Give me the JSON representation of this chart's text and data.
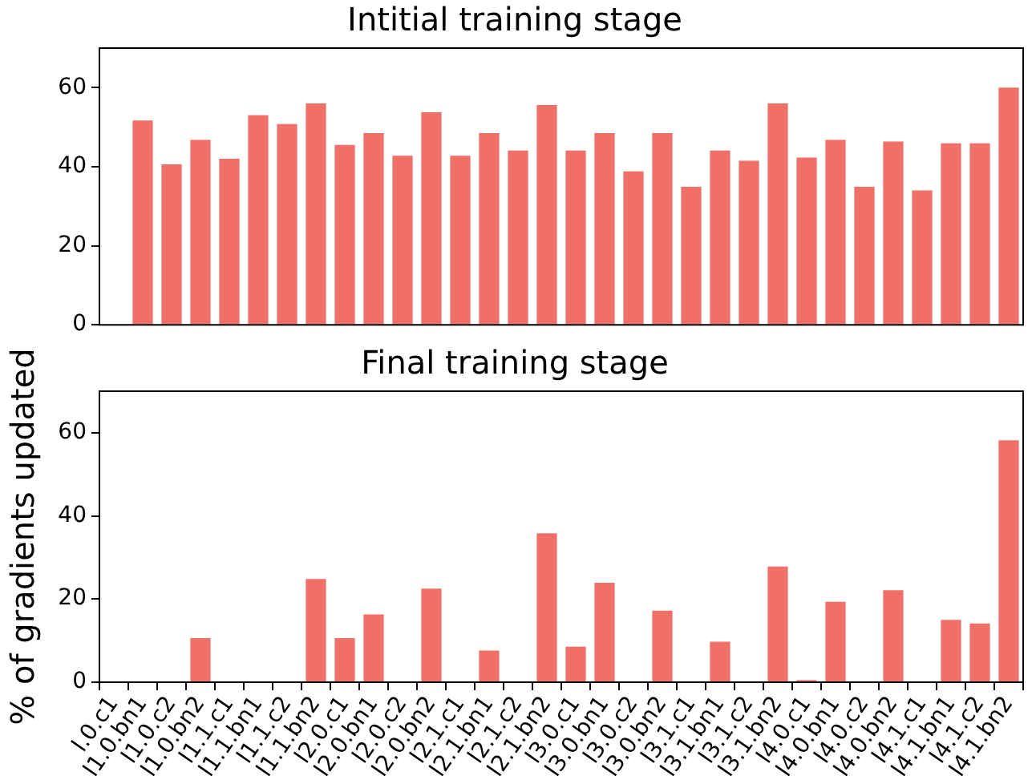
{
  "chart_data": [
    {
      "type": "bar",
      "title": "Intitial training stage",
      "categories": [
        null,
        null,
        null,
        null,
        null,
        null,
        null,
        null,
        null,
        null,
        null,
        null,
        null,
        null,
        null,
        null,
        null,
        null,
        null,
        null,
        null,
        null,
        null,
        null,
        null,
        null,
        null,
        null,
        null,
        null,
        null
      ],
      "values": [
        51.7,
        40.6,
        46.8,
        42,
        53,
        50.8,
        56,
        45.5,
        48.5,
        42.8,
        53.8,
        42.8,
        48.5,
        44.1,
        55.6,
        44.1,
        48.5,
        38.8,
        48.5,
        34.9,
        44.1,
        41.5,
        56,
        42.3,
        46.8,
        34.9,
        46.4,
        34,
        45.9,
        45.9,
        60
      ],
      "color": "#f07068",
      "ylim": [
        0,
        70
      ],
      "yticks": [
        0,
        20,
        40,
        60
      ],
      "grid": false,
      "legend": false,
      "tick_labels": "y"
    },
    {
      "type": "bar",
      "title": "Final training stage",
      "ylabel": "% of gradients updated",
      "categories": [
        "l.0.c1",
        "l1.0.bn1",
        "l1.0.c2",
        "l1.0.bn2",
        "l1.1.c1",
        "l1.1.bn1",
        "l1.1.c2",
        "l1.1.bn2",
        "l2.0.c1",
        "l2.0.bn1",
        "l2.0.c2",
        "l2.0.bn2",
        "l2.1.c1",
        "l2.1.bn1",
        "l2.1.c2",
        "l2.1.bn2",
        "l3.0.c1",
        "l3.0.bn1",
        "l3.0.c2",
        "l3.0.bn2",
        "l3.1.c1",
        "l3.1.bn1",
        "l3.1.c2",
        "l3.1.bn2",
        "l4.0.c1",
        "l4.0.bn1",
        "l4.0.c2",
        "l4.0.bn2",
        "l4.1.c1",
        "l4.1.bn1",
        "l4.1.c2",
        "l4.1.bn2"
      ],
      "values": [
        0,
        0,
        0,
        10.6,
        0,
        0,
        0,
        24.8,
        10.6,
        16.3,
        0,
        22.5,
        0,
        7.6,
        0,
        35.8,
        8.5,
        23.9,
        0,
        17.2,
        0,
        9.7,
        0,
        27.8,
        0.5,
        19.3,
        0,
        22.1,
        0,
        15,
        14.1,
        58.2
      ],
      "color": "#f07068",
      "ylim": [
        0,
        70
      ],
      "yticks": [
        0,
        20,
        40,
        60
      ],
      "grid": false,
      "legend": false
    }
  ]
}
